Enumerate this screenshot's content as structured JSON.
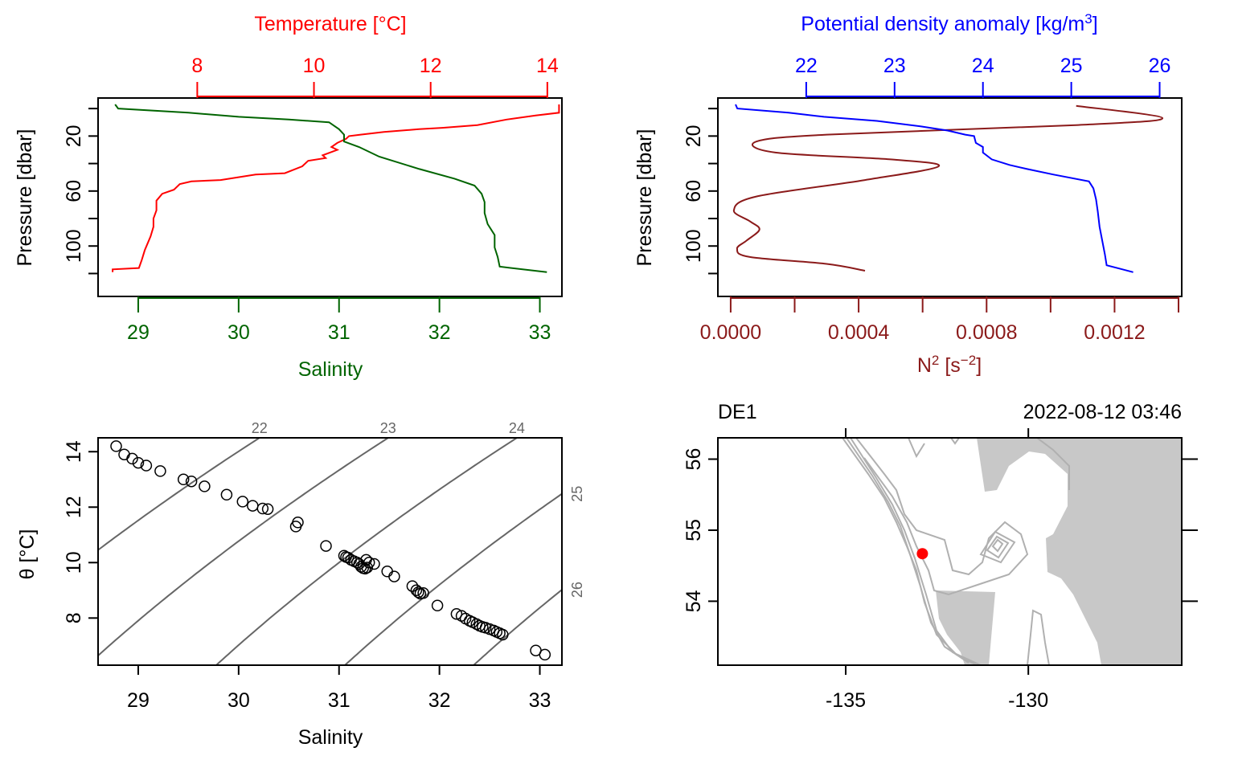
{
  "colors": {
    "temperature": "#ff0000",
    "salinity": "#006400",
    "density": "#0000ff",
    "n2": "#8b1a1a",
    "axis": "#000000",
    "isopycnal": "#666666",
    "land": "#c8c8c8",
    "bathy": "#b0b0b0",
    "station": "#ff0000"
  },
  "chart_data": [
    {
      "type": "line",
      "panel": "ts-profile",
      "ylabel": "Pressure [dbar]",
      "ylim": [
        132,
        -3
      ],
      "yticks": [
        20,
        60,
        100
      ],
      "yminor": [
        0,
        40,
        80,
        120
      ],
      "top_axis": {
        "label": "Temperature [°C]",
        "lim": [
          6.3,
          14.25
        ],
        "ticks": [
          8,
          10,
          12,
          14
        ]
      },
      "bottom_axis": {
        "label": "Salinity",
        "lim": [
          28.6,
          33.22
        ],
        "ticks": [
          29,
          30,
          31,
          32,
          33
        ]
      },
      "series": [
        {
          "kind": "temperature",
          "points": [
            [
              14.2,
              -3
            ],
            [
              14.2,
              3
            ],
            [
              13.8,
              5
            ],
            [
              13.3,
              8
            ],
            [
              12.8,
              12
            ],
            [
              12.2,
              14
            ],
            [
              11.8,
              15
            ],
            [
              11.2,
              17
            ],
            [
              10.8,
              19
            ],
            [
              10.6,
              20
            ],
            [
              10.55,
              22
            ],
            [
              10.4,
              25
            ],
            [
              10.3,
              28
            ],
            [
              10.4,
              30
            ],
            [
              10.15,
              34
            ],
            [
              10.2,
              36
            ],
            [
              9.9,
              38
            ],
            [
              9.8,
              42
            ],
            [
              9.5,
              47
            ],
            [
              9.0,
              48
            ],
            [
              8.4,
              52
            ],
            [
              7.9,
              53
            ],
            [
              7.7,
              55
            ],
            [
              7.6,
              59
            ],
            [
              7.4,
              62
            ],
            [
              7.3,
              67
            ],
            [
              7.3,
              74
            ],
            [
              7.25,
              80
            ],
            [
              7.25,
              86
            ],
            [
              7.2,
              93
            ],
            [
              7.15,
              98
            ],
            [
              7.1,
              103
            ],
            [
              7.05,
              110
            ],
            [
              7.0,
              116
            ],
            [
              6.55,
              117
            ],
            [
              6.55,
              119
            ]
          ]
        },
        {
          "kind": "salinity",
          "points": [
            [
              28.77,
              -3
            ],
            [
              28.8,
              0
            ],
            [
              29.5,
              3
            ],
            [
              30.0,
              6
            ],
            [
              30.5,
              8
            ],
            [
              30.9,
              10
            ],
            [
              31.0,
              15
            ],
            [
              31.05,
              19
            ],
            [
              31.05,
              24
            ],
            [
              31.2,
              28
            ],
            [
              31.4,
              35
            ],
            [
              31.8,
              44
            ],
            [
              32.15,
              51
            ],
            [
              32.35,
              56
            ],
            [
              32.42,
              62
            ],
            [
              32.45,
              68
            ],
            [
              32.45,
              76
            ],
            [
              32.48,
              84
            ],
            [
              32.55,
              92
            ],
            [
              32.55,
              101
            ],
            [
              32.58,
              108
            ],
            [
              32.6,
              115
            ],
            [
              33.07,
              119
            ]
          ]
        }
      ]
    },
    {
      "type": "line",
      "panel": "density-n2-profile",
      "ylabel": "Pressure [dbar]",
      "ylim": [
        132,
        -3
      ],
      "yticks": [
        20,
        60,
        100
      ],
      "yminor": [
        0,
        40,
        80,
        120
      ],
      "top_axis": {
        "label": "Potential density anomaly [kg/m³]",
        "lim": [
          21.0,
          26.25
        ],
        "ticks": [
          22,
          23,
          24,
          25,
          26
        ]
      },
      "bottom_axis": {
        "label": "N² [s⁻²]",
        "lim": [
          -4e-05,
          0.00141
        ],
        "ticks": [
          0.0,
          0.0004,
          0.0008,
          0.0012
        ],
        "tick_labels": [
          "0.0000",
          "0.0004",
          "0.0008",
          "0.0012"
        ],
        "minor": [
          0.0002,
          0.0006,
          0.001,
          0.0014
        ]
      },
      "series": [
        {
          "kind": "density",
          "points": [
            [
              21.2,
              -3
            ],
            [
              21.22,
              0
            ],
            [
              21.8,
              3
            ],
            [
              22.2,
              6
            ],
            [
              22.8,
              9
            ],
            [
              23.3,
              13
            ],
            [
              23.6,
              16
            ],
            [
              23.8,
              19
            ],
            [
              23.9,
              20
            ],
            [
              23.92,
              25
            ],
            [
              24.0,
              28
            ],
            [
              24.0,
              32
            ],
            [
              24.1,
              37
            ],
            [
              24.3,
              41
            ],
            [
              24.5,
              44
            ],
            [
              24.8,
              48
            ],
            [
              25.2,
              53
            ],
            [
              25.25,
              58
            ],
            [
              25.28,
              66
            ],
            [
              25.3,
              75
            ],
            [
              25.32,
              86
            ],
            [
              25.35,
              96
            ],
            [
              25.38,
              106
            ],
            [
              25.4,
              114
            ],
            [
              25.7,
              119
            ]
          ]
        },
        {
          "kind": "n2",
          "points": [
            [
              0.00108,
              -2
            ],
            [
              0.00135,
              7
            ],
            [
              0.00108,
              12
            ],
            [
              0.0003,
              19
            ],
            [
              8e-05,
              24
            ],
            [
              0.00014,
              32
            ],
            [
              0.0005,
              37
            ],
            [
              0.00065,
              42
            ],
            [
              0.00042,
              52
            ],
            [
              8e-05,
              64
            ],
            [
              1e-05,
              74
            ],
            [
              6e-05,
              82
            ],
            [
              9e-05,
              88
            ],
            [
              5e-05,
              96
            ],
            [
              2e-05,
              102
            ],
            [
              6e-05,
              108
            ],
            [
              0.0003,
              113
            ],
            [
              0.00042,
              118
            ]
          ]
        }
      ]
    },
    {
      "type": "scatter",
      "panel": "ts-diagram",
      "xlabel": "Salinity",
      "ylabel": "θ [°C]",
      "xlim": [
        28.6,
        33.22
      ],
      "ylim": [
        6.3,
        14.5
      ],
      "xticks": [
        29,
        30,
        31,
        32,
        33
      ],
      "yticks": [
        8,
        10,
        12,
        14
      ],
      "isopycnals": [
        22,
        23,
        24,
        25,
        26
      ],
      "points": [
        [
          28.78,
          14.2
        ],
        [
          28.86,
          13.9
        ],
        [
          28.94,
          13.75
        ],
        [
          29.0,
          13.6
        ],
        [
          29.08,
          13.5
        ],
        [
          29.22,
          13.3
        ],
        [
          29.45,
          13.0
        ],
        [
          29.53,
          12.93
        ],
        [
          29.66,
          12.75
        ],
        [
          29.88,
          12.45
        ],
        [
          30.04,
          12.2
        ],
        [
          30.14,
          12.05
        ],
        [
          30.24,
          11.95
        ],
        [
          30.29,
          11.93
        ],
        [
          30.57,
          11.3
        ],
        [
          30.59,
          11.45
        ],
        [
          30.87,
          10.6
        ],
        [
          31.05,
          10.25
        ],
        [
          31.07,
          10.2
        ],
        [
          31.09,
          10.18
        ],
        [
          31.12,
          10.1
        ],
        [
          31.15,
          10.05
        ],
        [
          31.18,
          10.0
        ],
        [
          31.2,
          9.95
        ],
        [
          31.22,
          9.85
        ],
        [
          31.24,
          9.8
        ],
        [
          31.26,
          9.78
        ],
        [
          31.28,
          9.82
        ],
        [
          31.27,
          10.1
        ],
        [
          31.3,
          10.0
        ],
        [
          31.35,
          9.95
        ],
        [
          31.48,
          9.68
        ],
        [
          31.55,
          9.5
        ],
        [
          31.73,
          9.15
        ],
        [
          31.77,
          9.0
        ],
        [
          31.79,
          8.93
        ],
        [
          31.81,
          8.88
        ],
        [
          31.84,
          8.9
        ],
        [
          31.98,
          8.45
        ],
        [
          32.17,
          8.15
        ],
        [
          32.22,
          8.08
        ],
        [
          32.26,
          7.98
        ],
        [
          32.3,
          7.9
        ],
        [
          32.33,
          7.85
        ],
        [
          32.37,
          7.78
        ],
        [
          32.4,
          7.72
        ],
        [
          32.43,
          7.68
        ],
        [
          32.46,
          7.65
        ],
        [
          32.5,
          7.6
        ],
        [
          32.54,
          7.55
        ],
        [
          32.57,
          7.5
        ],
        [
          32.6,
          7.45
        ],
        [
          32.63,
          7.4
        ],
        [
          32.96,
          6.83
        ],
        [
          33.05,
          6.68
        ]
      ]
    },
    {
      "type": "map",
      "panel": "station-map",
      "station": "DE1",
      "datetime": "2022-08-12 03:46",
      "xlim": [
        -138.5,
        -125.8
      ],
      "ylim": [
        53.1,
        56.3
      ],
      "xticks": [
        -135,
        -130
      ],
      "yticks": [
        54,
        55,
        56
      ],
      "station_position": [
        -132.9,
        54.67
      ]
    }
  ]
}
